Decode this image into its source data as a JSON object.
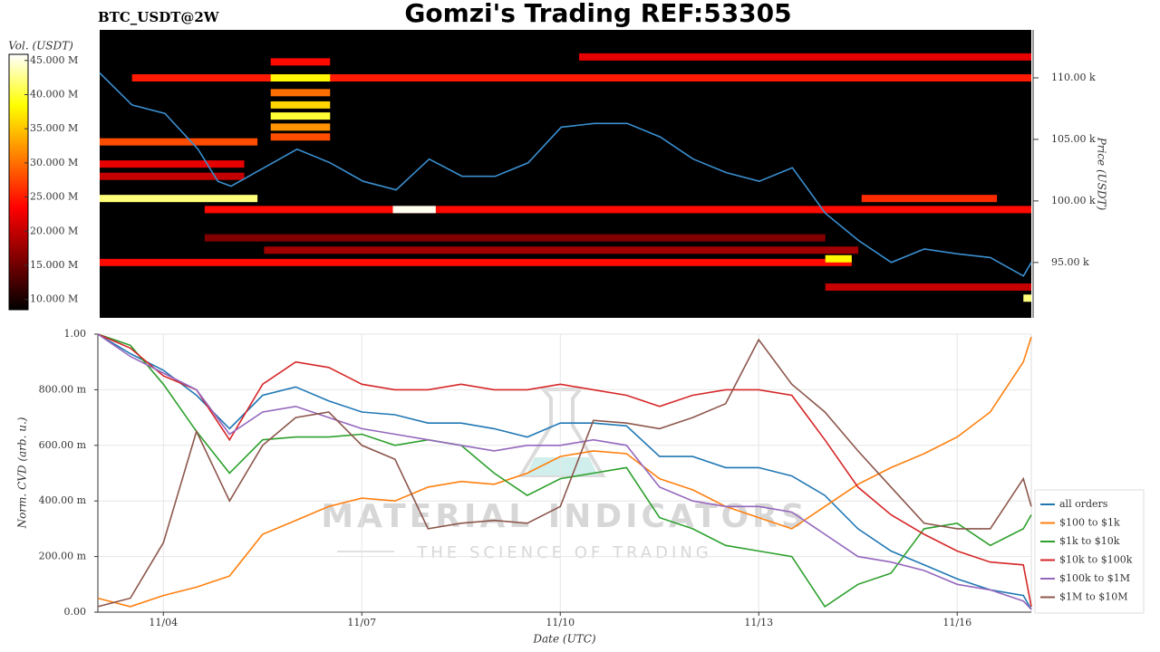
{
  "title": "Gomzi's Trading REF:53305",
  "symbol": "BTC_USDT@2W",
  "watermark": {
    "name": "MATERIAL INDICATORS",
    "tagline": "THE SCIENCE OF TRADING"
  },
  "chart_data": [
    {
      "type": "heatmap",
      "ylabel": "Price (USDT)",
      "xlim": [
        3.01,
        17.12
      ],
      "ylim": [
        90500,
        113900
      ],
      "yticks": [
        {
          "value": 95000,
          "label": "95.00 k"
        },
        {
          "value": 100000,
          "label": "100.00 k"
        },
        {
          "value": 105000,
          "label": "105.00 k"
        },
        {
          "value": 110000,
          "label": "110.00 k"
        }
      ],
      "colorbar": {
        "label": "Vol. (USDT)",
        "lim": [
          8500000,
          45900000
        ],
        "ticks": [
          {
            "value": 10000000,
            "label": "10.000 M"
          },
          {
            "value": 15000000,
            "label": "15.000 M"
          },
          {
            "value": 20000000,
            "label": "20.000 M"
          },
          {
            "value": 25000000,
            "label": "25.000 M"
          },
          {
            "value": 30000000,
            "label": "30.000 M"
          },
          {
            "value": 35000000,
            "label": "35.000 M"
          },
          {
            "value": 40000000,
            "label": "40.000 M"
          },
          {
            "value": 45000000,
            "label": "45.000 M"
          }
        ]
      },
      "cells": [
        {
          "x": [
            10.27,
            17.12
          ],
          "price": 111700,
          "volume": 22000000
        },
        {
          "x": [
            3.5,
            17.12
          ],
          "price": 110000,
          "volume": 25000000
        },
        {
          "x": [
            5.6,
            6.5
          ],
          "price": 111300,
          "volume": 24000000
        },
        {
          "x": [
            5.6,
            6.5
          ],
          "price": 110000,
          "volume": 38000000
        },
        {
          "x": [
            5.6,
            6.5
          ],
          "price": 108800,
          "volume": 30000000
        },
        {
          "x": [
            5.6,
            6.5
          ],
          "price": 107800,
          "volume": 36000000
        },
        {
          "x": [
            5.6,
            6.5
          ],
          "price": 106900,
          "volume": 40000000
        },
        {
          "x": [
            5.6,
            6.5
          ],
          "price": 106000,
          "volume": 32000000
        },
        {
          "x": [
            5.6,
            6.5
          ],
          "price": 105200,
          "volume": 28000000
        },
        {
          "x": [
            3.01,
            5.4
          ],
          "price": 104800,
          "volume": 28000000
        },
        {
          "x": [
            3.01,
            5.2
          ],
          "price": 103000,
          "volume": 22000000
        },
        {
          "x": [
            3.01,
            5.2
          ],
          "price": 102000,
          "volume": 20000000
        },
        {
          "x": [
            3.01,
            5.4
          ],
          "price": 100200,
          "volume": 42000000
        },
        {
          "x": [
            14.55,
            16.6
          ],
          "price": 100200,
          "volume": 26000000
        },
        {
          "x": [
            4.6,
            17.12
          ],
          "price": 99300,
          "volume": 24000000
        },
        {
          "x": [
            7.45,
            8.1
          ],
          "price": 99300,
          "volume": 45500000
        },
        {
          "x": [
            4.6,
            14.0
          ],
          "price": 97000,
          "volume": 16000000
        },
        {
          "x": [
            5.5,
            14.5
          ],
          "price": 96000,
          "volume": 18000000
        },
        {
          "x": [
            3.01,
            14.4
          ],
          "price": 95000,
          "volume": 24000000
        },
        {
          "x": [
            14.0,
            14.4
          ],
          "price": 95300,
          "volume": 38000000
        },
        {
          "x": [
            14.0,
            17.12
          ],
          "price": 93000,
          "volume": 20000000
        },
        {
          "x": [
            17.0,
            17.12
          ],
          "price": 92100,
          "volume": 42000000
        }
      ],
      "price_line": {
        "color": "#3a8fd0",
        "x": [
          3.01,
          3.5,
          4.0,
          4.5,
          4.8,
          5.0,
          5.5,
          6.0,
          6.5,
          7.0,
          7.5,
          8.0,
          8.5,
          9.0,
          9.5,
          10.0,
          10.5,
          11.0,
          11.5,
          12.0,
          12.5,
          13.0,
          13.5,
          14.0,
          14.5,
          15.0,
          15.5,
          16.0,
          16.5,
          17.0,
          17.12
        ],
        "values": [
          110400,
          107800,
          107100,
          104200,
          101600,
          101200,
          102700,
          104200,
          103100,
          101600,
          100900,
          103400,
          102000,
          102000,
          103100,
          106000,
          106300,
          106300,
          105200,
          103400,
          102300,
          101600,
          102700,
          99000,
          96800,
          95000,
          96100,
          95700,
          95400,
          93900,
          95000
        ]
      }
    },
    {
      "type": "line",
      "xlabel": "Date (UTC)",
      "ylabel": "Norm. CVD (arb. u.)",
      "xlim": [
        3.01,
        17.12
      ],
      "ylim": [
        0,
        1
      ],
      "xticks": [
        {
          "value": 4,
          "label": "11/04"
        },
        {
          "value": 7,
          "label": "11/07"
        },
        {
          "value": 10,
          "label": "11/10"
        },
        {
          "value": 13,
          "label": "11/13"
        },
        {
          "value": 16,
          "label": "11/16"
        }
      ],
      "yticks": [
        {
          "value": 0,
          "label": "0.00"
        },
        {
          "value": 0.2,
          "label": "200.00 m"
        },
        {
          "value": 0.4,
          "label": "400.00 m"
        },
        {
          "value": 0.6,
          "label": "600.00 m"
        },
        {
          "value": 0.8,
          "label": "800.00 m"
        },
        {
          "value": 1,
          "label": "1.00"
        }
      ],
      "grid": true,
      "legend": "lower right",
      "x": [
        3.01,
        3.5,
        4.0,
        4.5,
        5.0,
        5.5,
        6.0,
        6.5,
        7.0,
        7.5,
        8.0,
        8.5,
        9.0,
        9.5,
        10.0,
        10.5,
        11.0,
        11.5,
        12.0,
        12.5,
        13.0,
        13.5,
        14.0,
        14.5,
        15.0,
        15.5,
        16.0,
        16.5,
        17.0,
        17.12
      ],
      "series": [
        {
          "name": "all orders",
          "color": "#1f77b4",
          "values": [
            1.0,
            0.93,
            0.87,
            0.78,
            0.66,
            0.78,
            0.81,
            0.76,
            0.72,
            0.71,
            0.68,
            0.68,
            0.66,
            0.63,
            0.68,
            0.68,
            0.67,
            0.56,
            0.56,
            0.52,
            0.52,
            0.49,
            0.42,
            0.3,
            0.22,
            0.17,
            0.12,
            0.08,
            0.06,
            0.01
          ]
        },
        {
          "name": "$100 to $1k",
          "color": "#ff7f0e",
          "values": [
            0.05,
            0.02,
            0.06,
            0.09,
            0.13,
            0.28,
            0.33,
            0.38,
            0.41,
            0.4,
            0.45,
            0.47,
            0.46,
            0.5,
            0.56,
            0.58,
            0.57,
            0.48,
            0.44,
            0.38,
            0.34,
            0.3,
            0.38,
            0.46,
            0.52,
            0.57,
            0.63,
            0.72,
            0.9,
            0.99
          ]
        },
        {
          "name": "$1k to $10k",
          "color": "#2ca02c",
          "values": [
            1.0,
            0.96,
            0.82,
            0.65,
            0.5,
            0.62,
            0.63,
            0.63,
            0.64,
            0.6,
            0.62,
            0.6,
            0.5,
            0.42,
            0.48,
            0.5,
            0.52,
            0.34,
            0.3,
            0.24,
            0.22,
            0.2,
            0.02,
            0.1,
            0.14,
            0.3,
            0.32,
            0.24,
            0.3,
            0.35
          ]
        },
        {
          "name": "$10k to $100k",
          "color": "#d62728",
          "values": [
            1.0,
            0.95,
            0.85,
            0.8,
            0.62,
            0.82,
            0.9,
            0.88,
            0.82,
            0.8,
            0.8,
            0.82,
            0.8,
            0.8,
            0.82,
            0.8,
            0.78,
            0.74,
            0.78,
            0.8,
            0.8,
            0.78,
            0.62,
            0.45,
            0.35,
            0.28,
            0.22,
            0.18,
            0.17,
            0.02
          ]
        },
        {
          "name": "$100k to $1M",
          "color": "#9467bd",
          "values": [
            1.0,
            0.92,
            0.86,
            0.8,
            0.64,
            0.72,
            0.74,
            0.7,
            0.66,
            0.64,
            0.62,
            0.6,
            0.58,
            0.6,
            0.6,
            0.62,
            0.6,
            0.45,
            0.4,
            0.38,
            0.38,
            0.36,
            0.28,
            0.2,
            0.18,
            0.15,
            0.1,
            0.08,
            0.04,
            0.01
          ]
        },
        {
          "name": "$1M to $10M",
          "color": "#8c564b",
          "values": [
            0.02,
            0.05,
            0.25,
            0.65,
            0.4,
            0.6,
            0.7,
            0.72,
            0.6,
            0.55,
            0.3,
            0.32,
            0.33,
            0.32,
            0.38,
            0.69,
            0.68,
            0.66,
            0.7,
            0.75,
            0.98,
            0.82,
            0.72,
            0.58,
            0.45,
            0.32,
            0.3,
            0.3,
            0.48,
            0.38
          ]
        }
      ]
    }
  ]
}
